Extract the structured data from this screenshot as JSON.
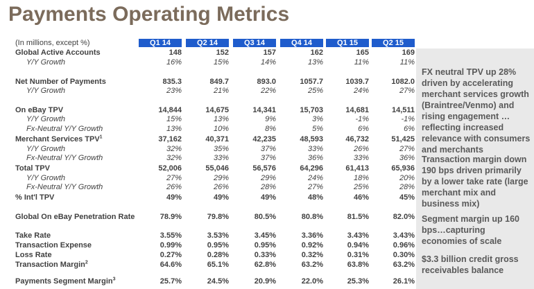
{
  "header": {
    "title": "Payments Operating Metrics"
  },
  "table": {
    "caption": "(In millions, except %)",
    "columns": [
      "Q1 14",
      "Q2 14",
      "Q3 14",
      "Q4 14",
      "Q1 15",
      "Q2 15"
    ],
    "groups": [
      {
        "label": "Global Active Accounts",
        "values": [
          "148",
          "152",
          "157",
          "162",
          "165",
          "169"
        ],
        "sub": [
          {
            "label": "Y/Y Growth",
            "values": [
              "16%",
              "15%",
              "14%",
              "13%",
              "11%",
              "11%"
            ]
          }
        ]
      },
      {
        "label": "Net Number of Payments",
        "values": [
          "835.3",
          "849.7",
          "893.0",
          "1057.7",
          "1039.7",
          "1082.0"
        ],
        "sub": [
          {
            "label": "Y/Y Growth",
            "values": [
              "23%",
              "21%",
              "22%",
              "25%",
              "24%",
              "27%"
            ]
          }
        ]
      },
      {
        "label": "On eBay TPV",
        "values": [
          "14,844",
          "14,675",
          "14,341",
          "15,703",
          "14,681",
          "14,511"
        ],
        "sub": [
          {
            "label": "Y/Y Growth",
            "values": [
              "15%",
              "13%",
              "9%",
              "3%",
              "-1%",
              "-1%"
            ]
          },
          {
            "label": "Fx-Neutral Y/Y Growth",
            "values": [
              "13%",
              "10%",
              "8%",
              "5%",
              "6%",
              "6%"
            ]
          }
        ]
      },
      {
        "label": "Merchant Services TPV",
        "note": "1",
        "values": [
          "37,162",
          "40,371",
          "42,235",
          "48,593",
          "46,732",
          "51,425"
        ],
        "sub": [
          {
            "label": "Y/Y Growth",
            "values": [
              "32%",
              "35%",
              "37%",
              "33%",
              "26%",
              "27%"
            ]
          },
          {
            "label": "Fx-Neutral Y/Y Growth",
            "values": [
              "32%",
              "33%",
              "37%",
              "36%",
              "33%",
              "36%"
            ]
          }
        ]
      },
      {
        "label": "Total TPV",
        "values": [
          "52,006",
          "55,046",
          "56,576",
          "64,296",
          "61,413",
          "65,936"
        ],
        "sub": [
          {
            "label": "Y/Y Growth",
            "values": [
              "27%",
              "29%",
              "29%",
              "24%",
              "18%",
              "20%"
            ]
          },
          {
            "label": "Fx-Neutral Y/Y Growth",
            "values": [
              "26%",
              "26%",
              "28%",
              "27%",
              "25%",
              "28%"
            ]
          }
        ]
      },
      {
        "label": "% Int'l TPV",
        "values": [
          "49%",
          "49%",
          "49%",
          "48%",
          "46%",
          "45%"
        ]
      },
      {
        "label": "Global On eBay Penetration Rate",
        "values": [
          "78.9%",
          "79.8%",
          "80.5%",
          "80.8%",
          "81.5%",
          "82.0%"
        ]
      },
      {
        "label": "Take Rate",
        "values": [
          "3.55%",
          "3.53%",
          "3.45%",
          "3.36%",
          "3.43%",
          "3.43%"
        ]
      },
      {
        "label": "Transaction Expense",
        "values": [
          "0.99%",
          "0.95%",
          "0.95%",
          "0.92%",
          "0.94%",
          "0.96%"
        ]
      },
      {
        "label": "Loss Rate",
        "values": [
          "0.27%",
          "0.28%",
          "0.33%",
          "0.32%",
          "0.31%",
          "0.30%"
        ]
      },
      {
        "label": "Transaction Margin",
        "note": "2",
        "values": [
          "64.6%",
          "65.1%",
          "62.8%",
          "63.2%",
          "63.8%",
          "63.2%"
        ]
      },
      {
        "label": "Payments Segment Margin",
        "note": "3",
        "values": [
          "25.7%",
          "24.5%",
          "20.9%",
          "22.0%",
          "25.3%",
          "26.1%"
        ]
      }
    ]
  },
  "sidebar": {
    "paragraphs": [
      "FX neutral TPV up 28% driven by accelerating merchant services growth (Braintree/Venmo) and rising engagement …reflecting increased relevance with consumers and merchants",
      "Transaction margin down 190 bps driven primarily by a lower take rate (large merchant mix and business mix)",
      "Segment margin up 160 bps…capturing economies of scale",
      "$3.3 billion credit gross receivables balance"
    ]
  }
}
